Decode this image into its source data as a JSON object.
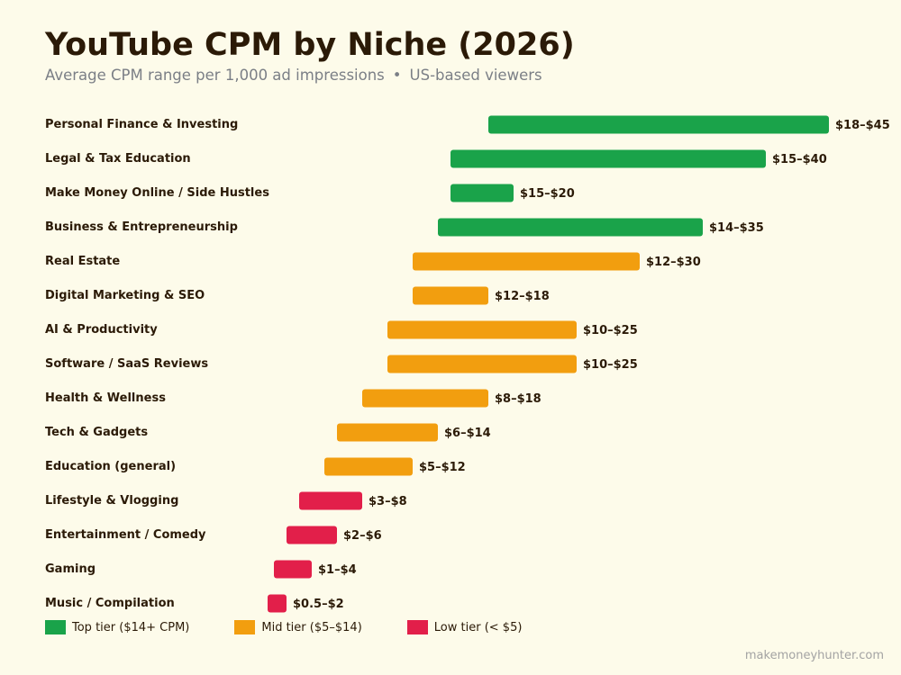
{
  "chart_data": {
    "type": "bar",
    "title": "YouTube CPM by Niche (2026)",
    "subtitle": {
      "left": "Average CPM range per 1,000 ad impressions",
      "separator": "•",
      "right": "US-based viewers"
    },
    "xlabel": "",
    "ylabel": "",
    "xlim": [
      0,
      45
    ],
    "grid": false,
    "legend_position": "bottom-left",
    "tiers": {
      "top": {
        "color": "#1aa34a",
        "label": "Top tier ($14+ CPM)"
      },
      "mid": {
        "color": "#f29e0f",
        "label": "Mid tier ($5–$14)"
      },
      "low": {
        "color": "#e21f4a",
        "label": "Low tier (< $5)"
      }
    },
    "categories": [
      {
        "name": "Personal Finance & Investing",
        "low": 18,
        "high": 45,
        "label": "$18–$45",
        "tier": "top"
      },
      {
        "name": "Legal & Tax Education",
        "low": 15,
        "high": 40,
        "label": "$15–$40",
        "tier": "top"
      },
      {
        "name": "Make Money Online / Side Hustles",
        "low": 15,
        "high": 20,
        "label": "$15–$20",
        "tier": "top"
      },
      {
        "name": "Business & Entrepreneurship",
        "low": 14,
        "high": 35,
        "label": "$14–$35",
        "tier": "top"
      },
      {
        "name": "Real Estate",
        "low": 12,
        "high": 30,
        "label": "$12–$30",
        "tier": "mid"
      },
      {
        "name": "Digital Marketing & SEO",
        "low": 12,
        "high": 18,
        "label": "$12–$18",
        "tier": "mid"
      },
      {
        "name": "AI & Productivity",
        "low": 10,
        "high": 25,
        "label": "$10–$25",
        "tier": "mid"
      },
      {
        "name": "Software / SaaS Reviews",
        "low": 10,
        "high": 25,
        "label": "$10–$25",
        "tier": "mid"
      },
      {
        "name": "Health & Wellness",
        "low": 8,
        "high": 18,
        "label": "$8–$18",
        "tier": "mid"
      },
      {
        "name": "Tech & Gadgets",
        "low": 6,
        "high": 14,
        "label": "$6–$14",
        "tier": "mid"
      },
      {
        "name": "Education (general)",
        "low": 5,
        "high": 12,
        "label": "$5–$12",
        "tier": "mid"
      },
      {
        "name": "Lifestyle & Vlogging",
        "low": 3,
        "high": 8,
        "label": "$3–$8",
        "tier": "low"
      },
      {
        "name": "Entertainment / Comedy",
        "low": 2,
        "high": 6,
        "label": "$2–$6",
        "tier": "low"
      },
      {
        "name": "Gaming",
        "low": 1,
        "high": 4,
        "label": "$1–$4",
        "tier": "low"
      },
      {
        "name": "Music / Compilation",
        "low": 0.5,
        "high": 2,
        "label": "$0.5–$2",
        "tier": "low"
      }
    ]
  },
  "footer": {
    "source": "makemoneyhunter.com"
  }
}
